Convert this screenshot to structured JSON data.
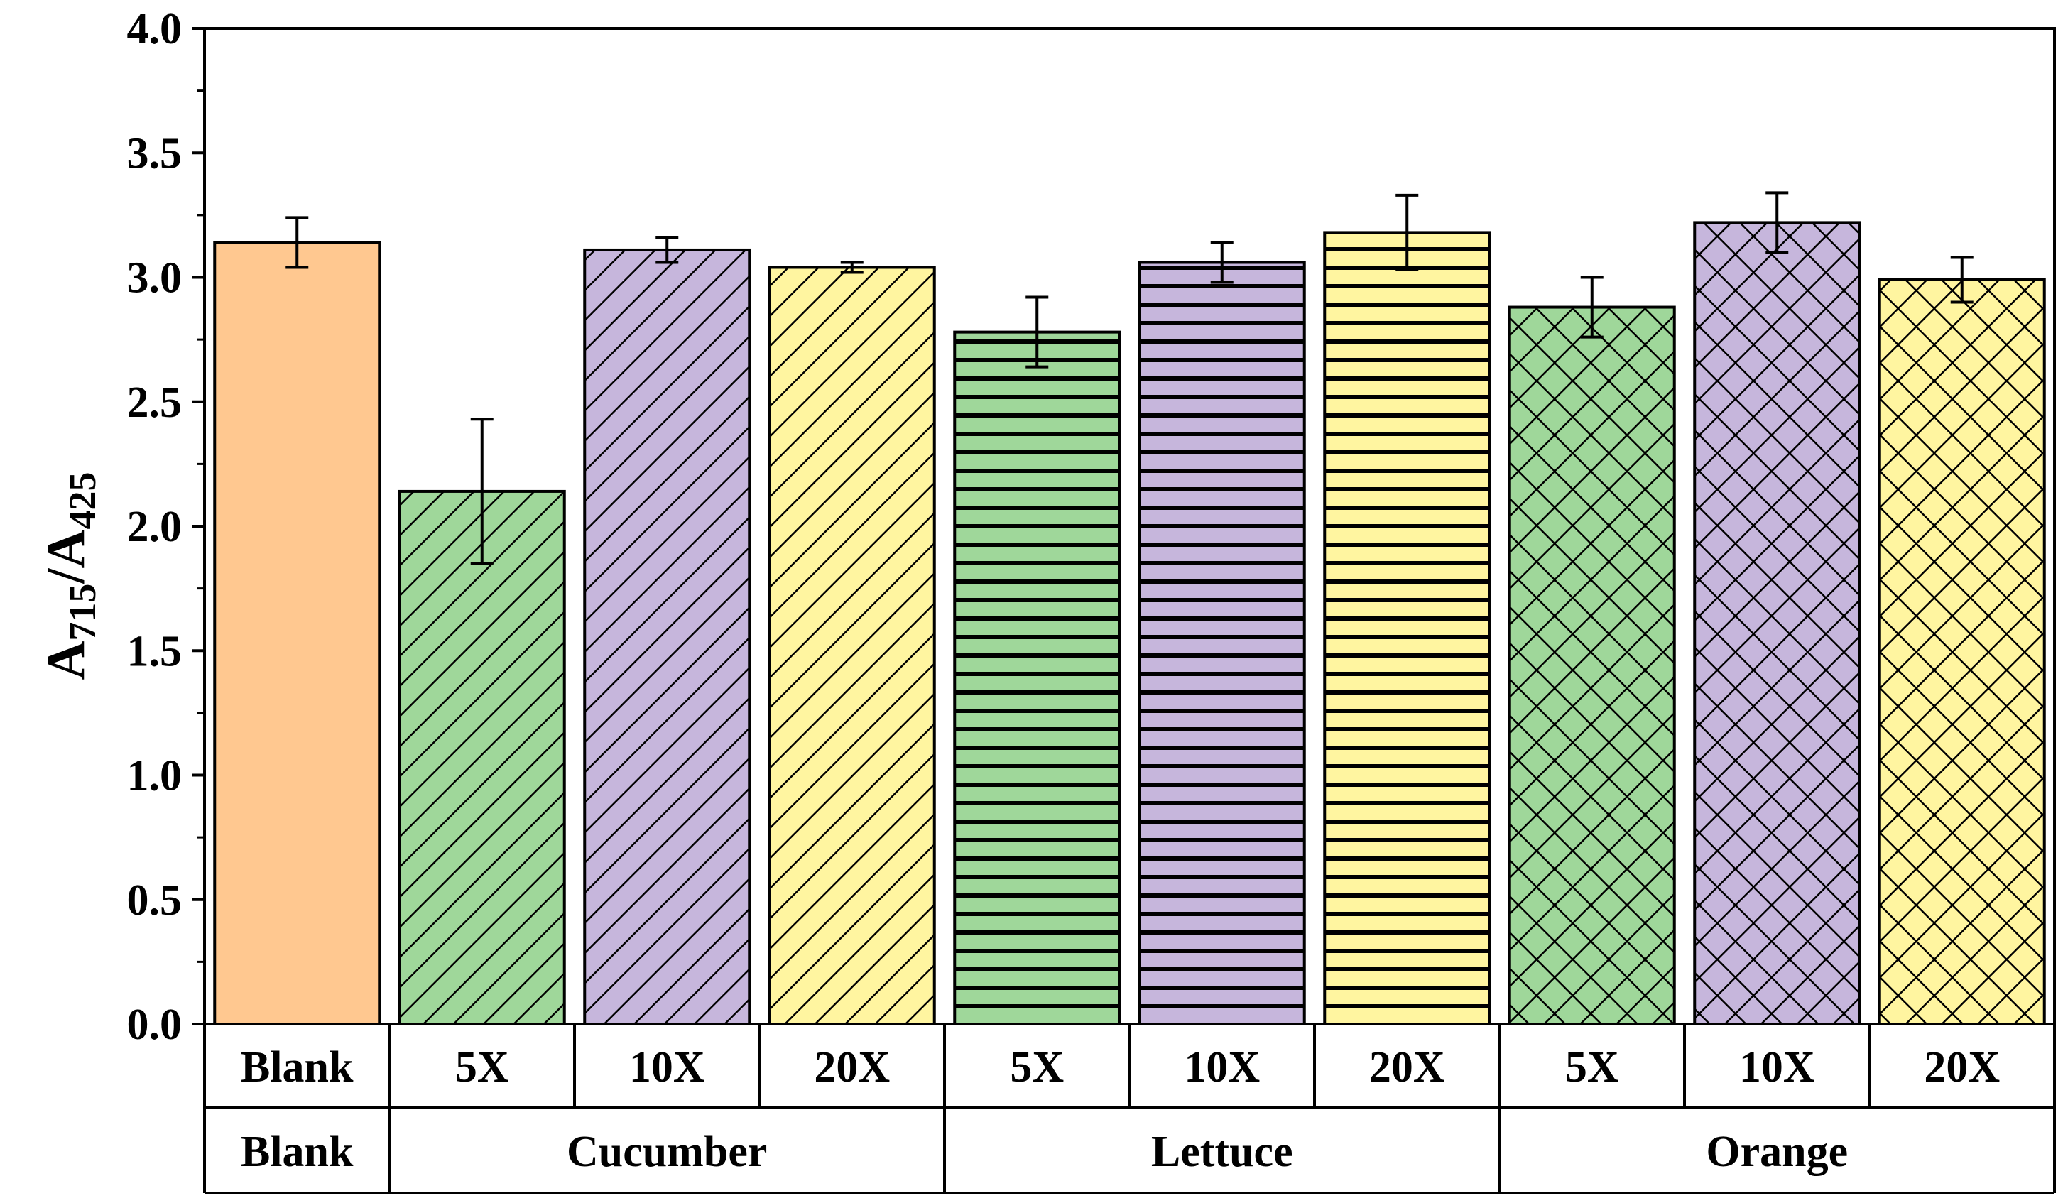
{
  "chart_data": {
    "type": "bar",
    "ylabel": {
      "main": "A",
      "sub1": "715",
      "slash": "/",
      "main2": "A",
      "sub2": "425"
    },
    "ylim": [
      0,
      4.0
    ],
    "yticks": [
      "0.0",
      "0.5",
      "1.0",
      "1.5",
      "2.0",
      "2.5",
      "3.0",
      "3.5",
      "4.0"
    ],
    "yticks_values": [
      0,
      0.5,
      1.0,
      1.5,
      2.0,
      2.5,
      3.0,
      3.5,
      4.0
    ],
    "categories": [
      "Blank",
      "5X",
      "10X",
      "20X",
      "5X",
      "10X",
      "20X",
      "5X",
      "10X",
      "20X"
    ],
    "groups": [
      {
        "label": "Blank",
        "span": 1
      },
      {
        "label": "Cucumber",
        "span": 3
      },
      {
        "label": "Lettuce",
        "span": 3
      },
      {
        "label": "Orange",
        "span": 3
      }
    ],
    "values": [
      3.14,
      2.14,
      3.11,
      3.04,
      2.78,
      3.06,
      3.18,
      2.88,
      3.22,
      2.99
    ],
    "errors": [
      0.1,
      0.29,
      0.05,
      0.02,
      0.14,
      0.08,
      0.15,
      0.12,
      0.12,
      0.09
    ],
    "fill_colors": [
      "#FFC890",
      "#9FD79A",
      "#C6B6DC",
      "#FFF5A0",
      "#9FD79A",
      "#C6B6DC",
      "#FFF5A0",
      "#9FD79A",
      "#C6B6DC",
      "#FFF5A0"
    ],
    "patterns": [
      "none",
      "diagonal",
      "diagonal",
      "diagonal",
      "horizontal",
      "horizontal",
      "horizontal",
      "crosshatch",
      "crosshatch",
      "crosshatch"
    ],
    "grid": false
  }
}
